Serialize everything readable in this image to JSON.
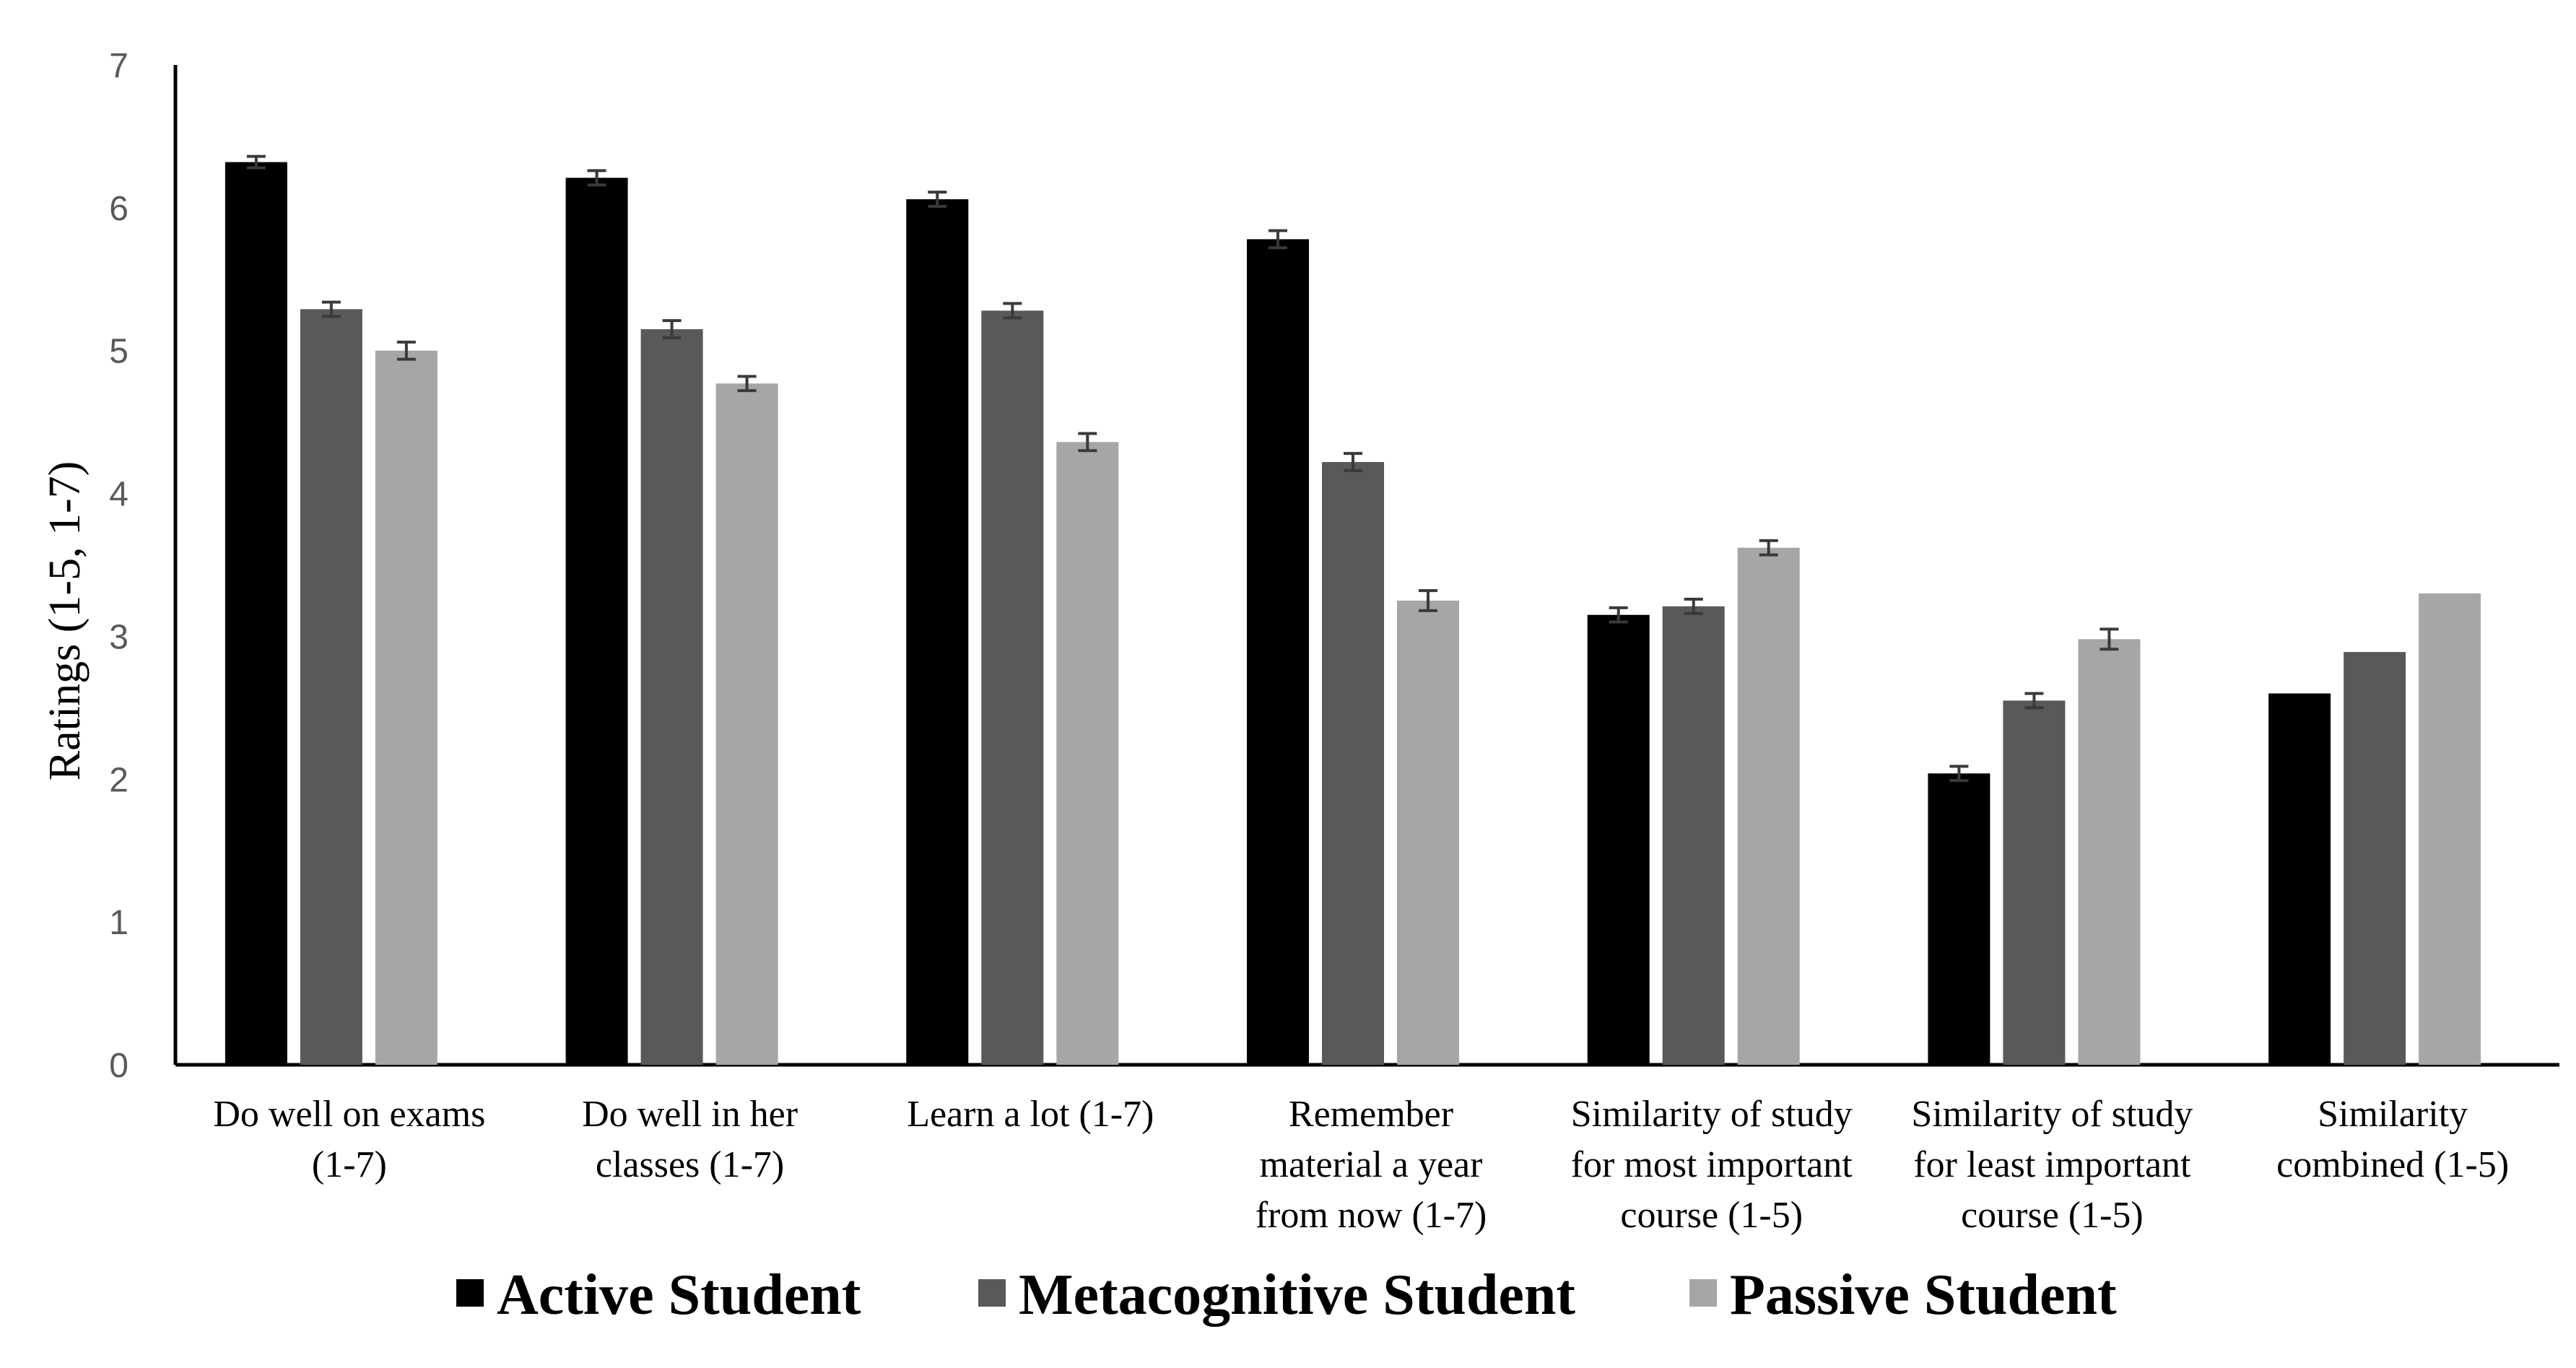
{
  "chart_data": {
    "type": "bar",
    "title": "",
    "xlabel": "",
    "ylabel": "Ratings (1-5, 1-7)",
    "ylim": [
      0,
      7
    ],
    "yticks": [
      0,
      1,
      2,
      3,
      4,
      5,
      6,
      7
    ],
    "grid": false,
    "legend_position": "bottom",
    "categories": [
      [
        "Do well on exams",
        "(1-7)"
      ],
      [
        "Do well in her",
        "classes (1-7)"
      ],
      [
        "Learn a lot (1-7)"
      ],
      [
        "Remember",
        "material a year",
        "from now (1-7)"
      ],
      [
        "Similarity of study",
        "for most important",
        "course (1-5)"
      ],
      [
        "Similarity of study",
        "for least important",
        "course (1-5)"
      ],
      [
        "Similarity",
        "combined (1-5)"
      ]
    ],
    "series": [
      {
        "name": "Active Student",
        "color": "#000000",
        "values": [
          6.32,
          6.21,
          6.06,
          5.78,
          3.15,
          2.04,
          2.6
        ],
        "errors": [
          0.04,
          0.05,
          0.05,
          0.06,
          0.05,
          0.05,
          null
        ]
      },
      {
        "name": "Metacognitive Student",
        "color": "#595959",
        "values": [
          5.29,
          5.15,
          5.28,
          4.22,
          3.21,
          2.55,
          2.89
        ],
        "errors": [
          0.05,
          0.06,
          0.05,
          0.06,
          0.05,
          0.05,
          null
        ]
      },
      {
        "name": "Passive Student",
        "color": "#a6a6a6",
        "values": [
          5.0,
          4.77,
          4.36,
          3.25,
          3.62,
          2.98,
          3.3
        ],
        "errors": [
          0.06,
          0.05,
          0.06,
          0.07,
          0.05,
          0.07,
          null
        ]
      }
    ]
  }
}
